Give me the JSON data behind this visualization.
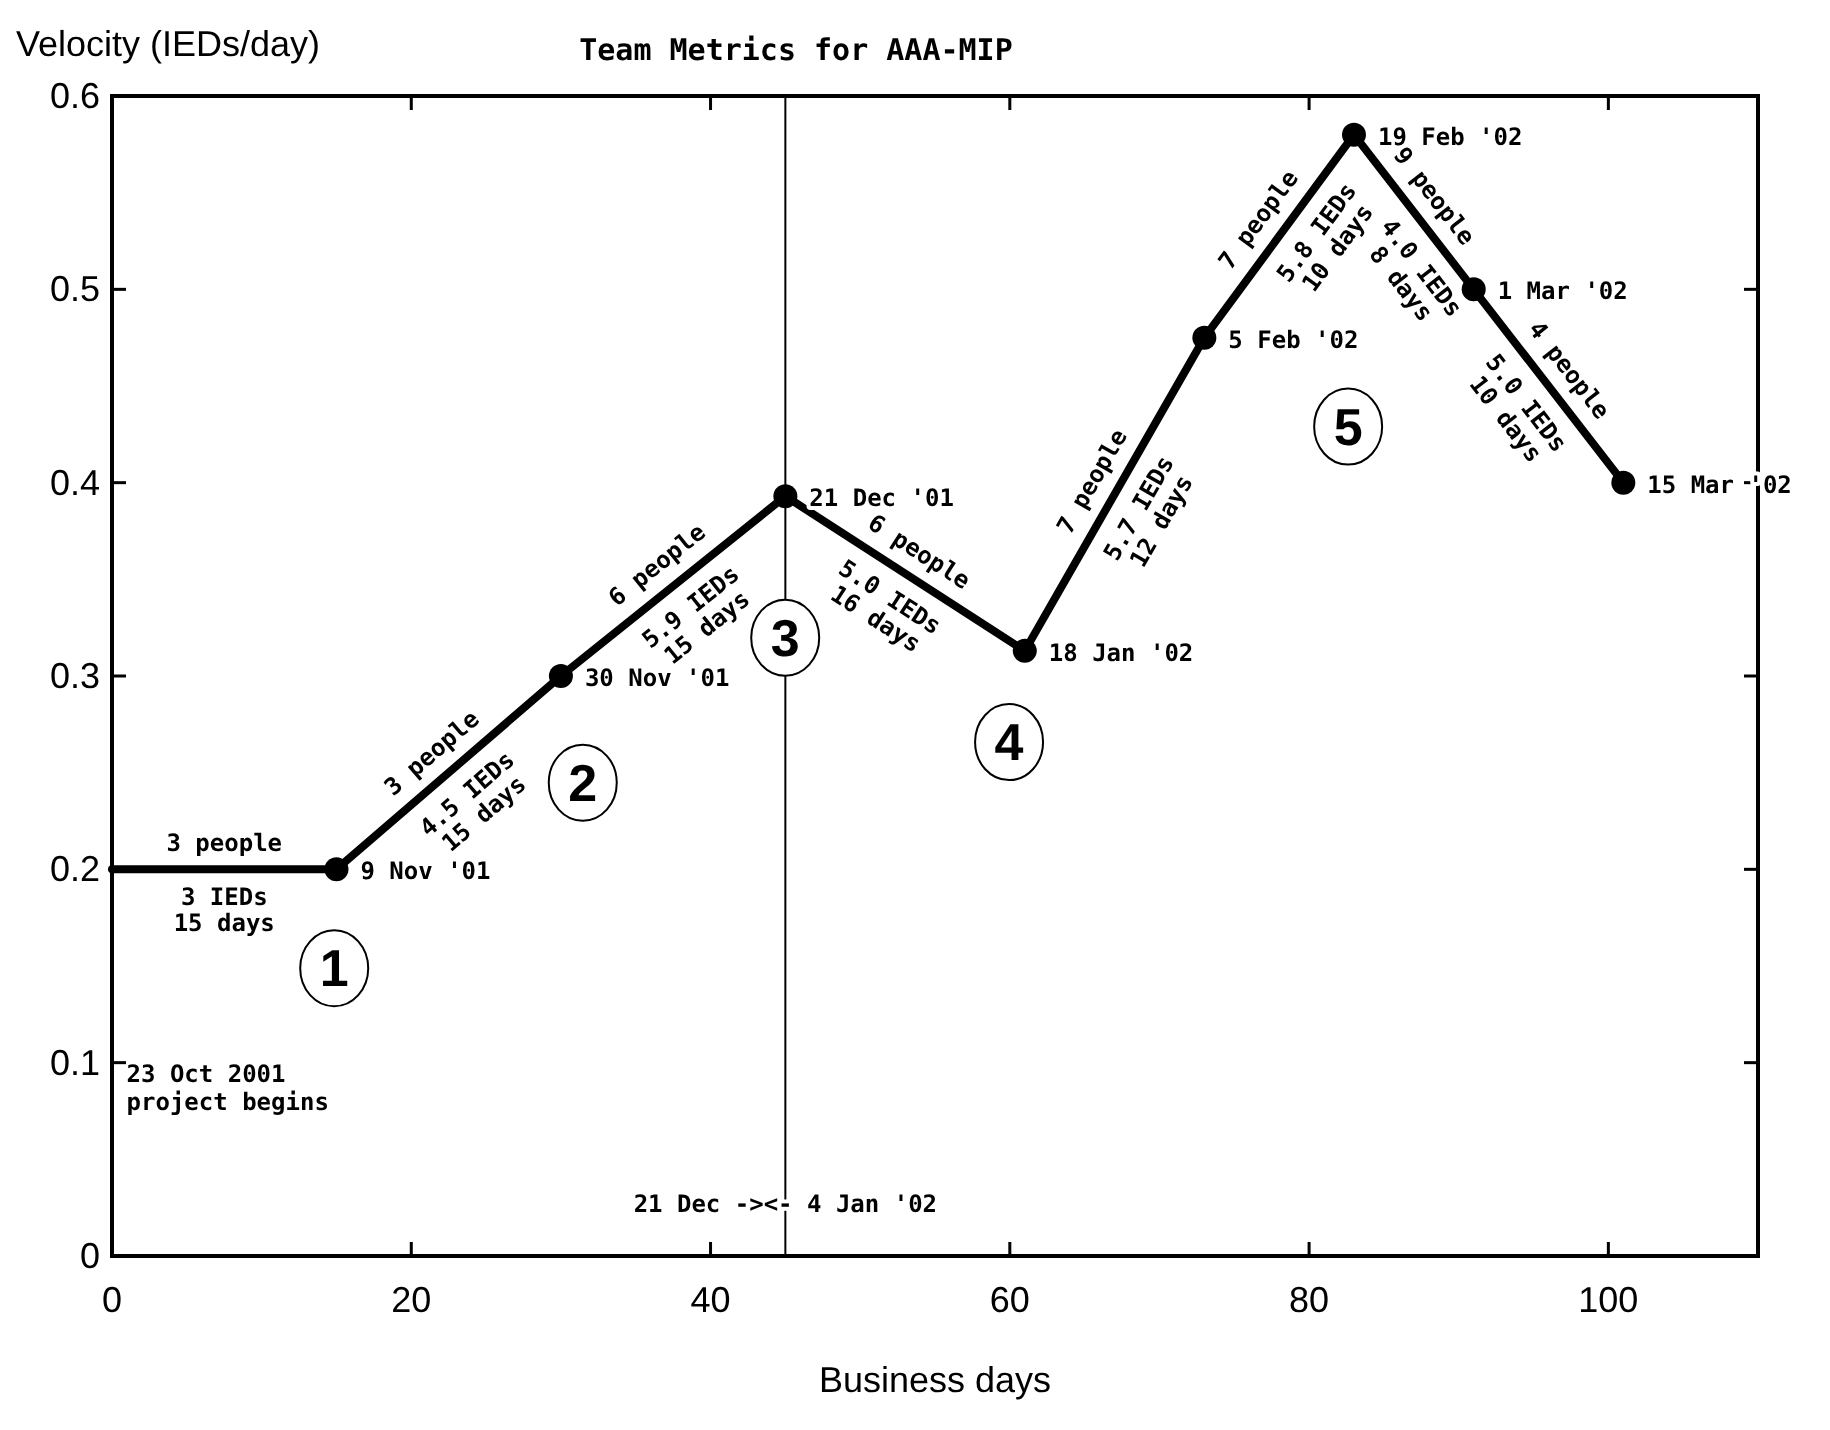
{
  "chart_data": {
    "type": "line",
    "title": "Team Metrics for AAA-MIP",
    "xlabel": "Business days",
    "ylabel": "Velocity (IEDs/day)",
    "xlim": [
      0,
      110
    ],
    "xticks": [
      0,
      20,
      40,
      60,
      80,
      100
    ],
    "ylim": [
      0,
      0.6
    ],
    "yticks": [
      0,
      0.1,
      0.2,
      0.3,
      0.4,
      0.5,
      0.6
    ],
    "grid": false,
    "line_style": "solid",
    "series": [
      {
        "color": "#000000",
        "x": [
          0,
          15
        ],
        "values": [
          0.2,
          0.2
        ]
      },
      {
        "color": "#000000",
        "marker": "circle",
        "x": [
          15,
          30,
          45,
          61,
          73,
          83,
          91,
          101
        ],
        "values": [
          0.2,
          0.3,
          0.393,
          0.313,
          0.475,
          0.58,
          0.5,
          0.4
        ]
      }
    ],
    "ref_lines": [
      {
        "axis": "x",
        "value": 45,
        "label": "21 Dec -><- 4 Jan '02",
        "color": "#000000"
      }
    ],
    "annotations": [
      {
        "text": "3 people",
        "x": 7.5,
        "y": 0.2
      },
      {
        "text": "3 IEDs\n15 days",
        "x": 7.5,
        "y": 0.2
      },
      {
        "text": "3 people",
        "x": 22.5,
        "y": 0.25
      },
      {
        "text": "4.5 IEDs\n15 days",
        "x": 22.5,
        "y": 0.25
      },
      {
        "text": "6 people",
        "x": 37.5,
        "y": 0.347
      },
      {
        "text": "5.9 IEDs\n15 days",
        "x": 37.5,
        "y": 0.347
      },
      {
        "text": "6 people",
        "x": 53,
        "y": 0.353
      },
      {
        "text": "5.0 IEDs\n16 days",
        "x": 53,
        "y": 0.353
      },
      {
        "text": "7 people",
        "x": 67,
        "y": 0.394
      },
      {
        "text": "5.7 IEDs\n12 days",
        "x": 67,
        "y": 0.394
      },
      {
        "text": "7 people",
        "x": 78,
        "y": 0.528
      },
      {
        "text": "5.8 IEDs\n10 days",
        "x": 79,
        "y": 0.538
      },
      {
        "text": "9 people",
        "x": 87,
        "y": 0.54
      },
      {
        "text": "4.0 IEDs\n8 days",
        "x": 89,
        "y": 0.52
      },
      {
        "text": "4 people",
        "x": 96,
        "y": 0.45
      },
      {
        "text": "5.0 IEDs\n10 days",
        "x": 96,
        "y": 0.45
      },
      {
        "text": "9 Nov '01",
        "x": 15,
        "y": 0.2
      },
      {
        "text": "30 Nov '01",
        "x": 30,
        "y": 0.3
      },
      {
        "text": "21 Dec '01",
        "x": 45,
        "y": 0.393
      },
      {
        "text": "18 Jan '02",
        "x": 61,
        "y": 0.313
      },
      {
        "text": "5 Feb '02",
        "x": 73,
        "y": 0.475
      },
      {
        "text": "19 Feb '02",
        "x": 83,
        "y": 0.58
      },
      {
        "text": "1 Mar '02",
        "x": 91,
        "y": 0.5
      },
      {
        "text": "15 Mar '02",
        "x": 101,
        "y": 0.4
      },
      "23 Oct 2001\nproject begins",
      "1",
      "2",
      "3",
      "4",
      "5"
    ]
  }
}
